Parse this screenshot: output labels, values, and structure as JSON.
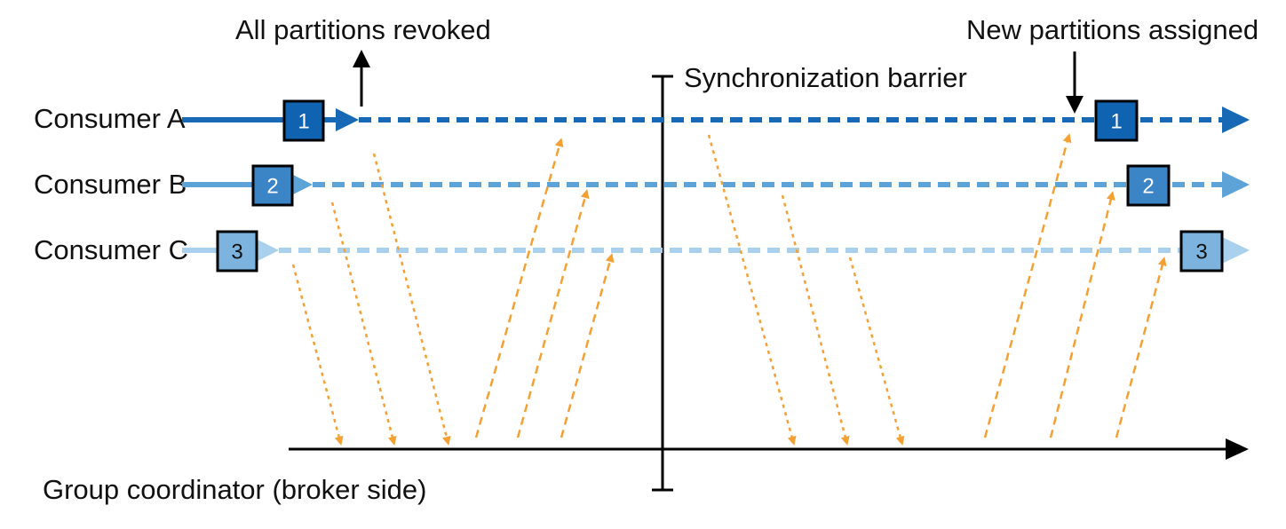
{
  "annotations": {
    "revoked": "All partitions revoked",
    "assigned": "New partitions assigned",
    "barrier": "Synchronization barrier",
    "coordinator": "Group coordinator (broker side)"
  },
  "consumers": [
    {
      "label": "Consumer A",
      "partition": "1",
      "color": "#1769b5"
    },
    {
      "label": "Consumer B",
      "partition": "2",
      "color": "#5ea3d8"
    },
    {
      "label": "Consumer C",
      "partition": "3",
      "color": "#a9d0ec"
    }
  ],
  "colors": {
    "message_arrow": "#f5a033",
    "axis": "#000000",
    "box_border": "#000000"
  }
}
